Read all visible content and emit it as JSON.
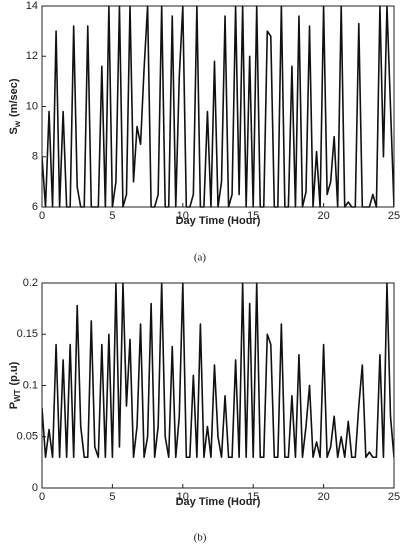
{
  "chart_data": [
    {
      "type": "line",
      "caption": "(a)",
      "xlabel": "Day Time (Hour)",
      "ylabel": {
        "text": "S",
        "sub": "w",
        "unit": "(m/sec)"
      },
      "xlim": [
        0,
        25
      ],
      "xticks": [
        0,
        5,
        10,
        15,
        20,
        25
      ],
      "ylim": [
        6,
        14
      ],
      "yticks": [
        6,
        8,
        10,
        12,
        14
      ],
      "x": [
        0,
        0.25,
        0.5,
        0.75,
        1,
        1.25,
        1.5,
        1.75,
        2,
        2.25,
        2.5,
        2.75,
        3,
        3.25,
        3.5,
        3.75,
        4,
        4.25,
        4.5,
        4.75,
        5,
        5.25,
        5.5,
        5.75,
        6,
        6.25,
        6.5,
        6.75,
        7,
        7.25,
        7.5,
        7.75,
        8,
        8.25,
        8.5,
        8.75,
        9,
        9.25,
        9.5,
        9.75,
        10,
        10.25,
        10.5,
        10.75,
        11,
        11.25,
        11.5,
        11.75,
        12,
        12.25,
        12.5,
        12.75,
        13,
        13.25,
        13.5,
        13.75,
        14,
        14.25,
        14.5,
        14.75,
        15,
        15.25,
        15.5,
        15.75,
        16,
        16.25,
        16.5,
        16.75,
        17,
        17.25,
        17.5,
        17.75,
        18,
        18.25,
        18.5,
        18.75,
        19,
        19.25,
        19.5,
        19.75,
        20,
        20.25,
        20.5,
        20.75,
        21,
        21.25,
        21.5,
        21.75,
        22,
        22.25,
        22.5,
        22.75,
        23,
        23.25,
        23.5,
        23.75,
        24,
        24.25,
        24.5,
        24.75,
        25
      ],
      "series": [
        {
          "color": "#111111",
          "values": [
            8,
            6,
            9.8,
            6,
            13,
            6,
            9.8,
            6,
            6,
            13.2,
            6.8,
            6,
            6,
            13.2,
            6,
            6,
            6,
            11.6,
            6,
            14,
            6,
            7,
            14,
            6,
            6.5,
            14,
            7,
            9.2,
            8.5,
            11.5,
            14,
            6,
            6,
            6.5,
            14,
            6,
            6,
            13.6,
            6,
            11.2,
            14,
            6,
            6,
            6.5,
            14,
            6,
            6,
            9.8,
            6,
            11.8,
            6,
            7,
            13.6,
            6,
            6.5,
            14,
            6.5,
            14,
            6,
            12,
            6,
            14,
            6,
            6,
            13,
            12.8,
            6,
            6,
            14,
            6,
            6,
            11.6,
            6,
            13.6,
            6,
            6.6,
            13.2,
            6,
            8.2,
            6,
            14,
            6.5,
            7,
            8.8,
            6,
            14,
            6,
            6.2,
            6,
            6,
            13.3,
            6,
            6,
            6,
            6.5,
            6,
            14,
            8,
            14,
            10,
            6
          ]
        }
      ]
    },
    {
      "type": "line",
      "caption": "(b)",
      "xlabel": "Day Time (Hour)",
      "ylabel": {
        "text": "P",
        "sub": "WT",
        "unit": "(p.u)"
      },
      "xlim": [
        0,
        25
      ],
      "xticks": [
        0,
        5,
        10,
        15,
        20,
        25
      ],
      "ylim": [
        0,
        0.2
      ],
      "yticks": [
        0,
        0.05,
        0.1,
        0.15,
        0.2
      ],
      "x": [
        0,
        0.25,
        0.5,
        0.75,
        1,
        1.25,
        1.5,
        1.75,
        2,
        2.25,
        2.5,
        2.75,
        3,
        3.25,
        3.5,
        3.75,
        4,
        4.25,
        4.5,
        4.75,
        5,
        5.25,
        5.5,
        5.75,
        6,
        6.25,
        6.5,
        6.75,
        7,
        7.25,
        7.5,
        7.75,
        8,
        8.25,
        8.5,
        8.75,
        9,
        9.25,
        9.5,
        9.75,
        10,
        10.25,
        10.5,
        10.75,
        11,
        11.25,
        11.5,
        11.75,
        12,
        12.25,
        12.5,
        12.75,
        13,
        13.25,
        13.5,
        13.75,
        14,
        14.25,
        14.5,
        14.75,
        15,
        15.25,
        15.5,
        15.75,
        16,
        16.25,
        16.5,
        16.75,
        17,
        17.25,
        17.5,
        17.75,
        18,
        18.25,
        18.5,
        18.75,
        19,
        19.25,
        19.5,
        19.75,
        20,
        20.25,
        20.5,
        20.75,
        21,
        21.25,
        21.5,
        21.75,
        22,
        22.25,
        22.5,
        22.75,
        23,
        23.25,
        23.5,
        23.75,
        24,
        24.25,
        24.5,
        24.75,
        25
      ],
      "series": [
        {
          "color": "#111111",
          "values": [
            0.078,
            0.03,
            0.057,
            0.03,
            0.14,
            0.03,
            0.125,
            0.03,
            0.14,
            0.03,
            0.178,
            0.06,
            0.03,
            0.03,
            0.163,
            0.04,
            0.03,
            0.14,
            0.03,
            0.15,
            0.03,
            0.2,
            0.04,
            0.2,
            0.08,
            0.145,
            0.03,
            0.06,
            0.16,
            0.03,
            0.05,
            0.18,
            0.03,
            0.06,
            0.2,
            0.05,
            0.03,
            0.138,
            0.03,
            0.07,
            0.2,
            0.03,
            0.03,
            0.11,
            0.03,
            0.16,
            0.03,
            0.06,
            0.03,
            0.12,
            0.05,
            0.03,
            0.09,
            0.03,
            0.03,
            0.125,
            0.03,
            0.2,
            0.03,
            0.18,
            0.03,
            0.2,
            0.03,
            0.03,
            0.15,
            0.14,
            0.03,
            0.03,
            0.16,
            0.03,
            0.03,
            0.09,
            0.03,
            0.13,
            0.03,
            0.06,
            0.1,
            0.03,
            0.045,
            0.03,
            0.14,
            0.03,
            0.04,
            0.07,
            0.03,
            0.05,
            0.03,
            0.065,
            0.03,
            0.03,
            0.08,
            0.12,
            0.03,
            0.035,
            0.03,
            0.03,
            0.13,
            0.03,
            0.2,
            0.07,
            0.03
          ]
        }
      ]
    }
  ]
}
